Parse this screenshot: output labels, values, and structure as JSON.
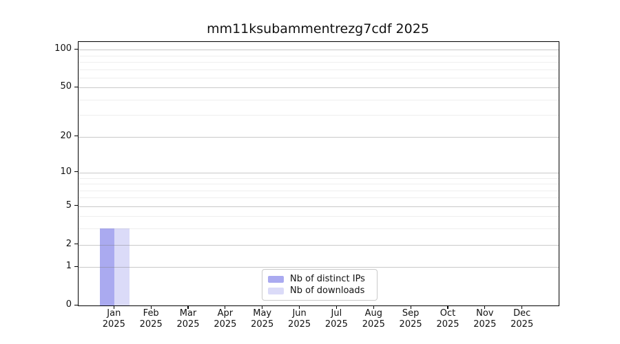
{
  "figure": {
    "title": "mm11ksubammentrezg7cdf 2025"
  },
  "chart_data": {
    "type": "bar",
    "title": "mm11ksubammentrezg7cdf 2025",
    "categories": [
      "Jan",
      "Feb",
      "Mar",
      "Apr",
      "May",
      "Jun",
      "Jul",
      "Aug",
      "Sep",
      "Oct",
      "Nov",
      "Dec"
    ],
    "category_year": "2025",
    "series": [
      {
        "name": "Nb of distinct IPs",
        "color": "#aaaaf0",
        "values": [
          3,
          0,
          0,
          0,
          0,
          0,
          0,
          0,
          0,
          0,
          0,
          0
        ]
      },
      {
        "name": "Nb of downloads",
        "color": "#dbdbf8",
        "values": [
          3,
          0,
          0,
          0,
          0,
          0,
          0,
          0,
          0,
          0,
          0,
          0
        ]
      }
    ],
    "yscale": "log10(value+1)",
    "ylim": [
      0,
      115
    ],
    "y_major_ticks": [
      0,
      1,
      2,
      5,
      10,
      20,
      50,
      100
    ],
    "y_minor_ticks": [
      3,
      4,
      6,
      7,
      8,
      9,
      30,
      40,
      60,
      70,
      80,
      90
    ],
    "grid": "horizontal",
    "legend_position": "lower-center"
  },
  "legend": {
    "items": [
      {
        "label": "Nb of distinct IPs",
        "color": "#aaaaf0"
      },
      {
        "label": "Nb of downloads",
        "color": "#dbdbf8"
      }
    ]
  },
  "colors": {
    "spine": "#000000",
    "grid_major": "rgba(120,120,120,0.40)",
    "grid_minor": "rgba(120,120,120,0.13)",
    "background": "#ffffff"
  }
}
